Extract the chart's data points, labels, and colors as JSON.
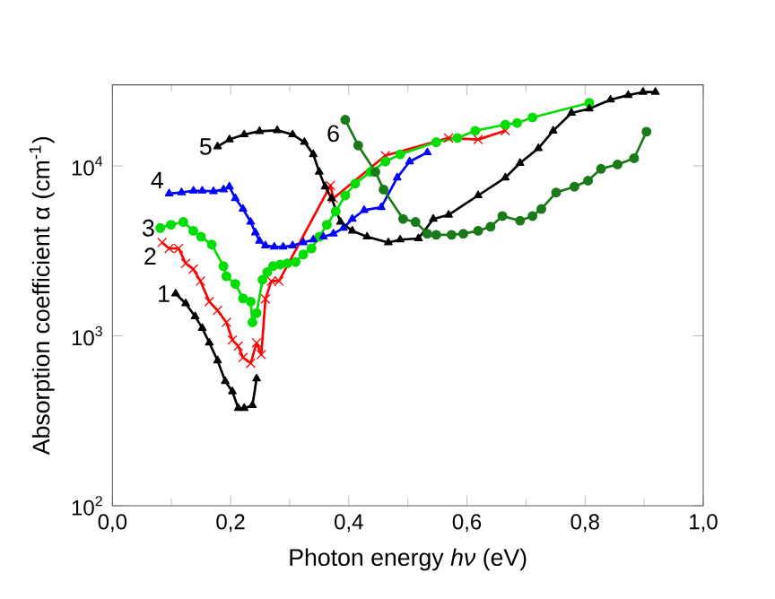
{
  "chart_data": {
    "type": "line",
    "xlabel": "Photon energy *hν* (eV)",
    "ylabel": "Absorption coefficient α (cm$^{-1}$)",
    "log": "y",
    "grid": false,
    "line_style": "solid",
    "xlim": [
      0,
      1.0
    ],
    "xticks": [
      {
        "value": 0,
        "label": "0,0"
      },
      {
        "value": 0.2,
        "label": "0,2"
      },
      {
        "value": 0.4,
        "label": "0,4"
      },
      {
        "value": 0.6,
        "label": "0,6"
      },
      {
        "value": 0.8,
        "label": "0,8"
      },
      {
        "value": 1.0,
        "label": "1,0"
      }
    ],
    "ylim": [
      100,
      30000
    ],
    "yticks": [
      {
        "value": 100,
        "label": "10$^{2}$"
      },
      {
        "value": 1000,
        "label": "10$^{3}$"
      },
      {
        "value": 10000,
        "label": "10$^{4}$"
      }
    ],
    "series": [
      {
        "name": "1",
        "color": "#000000",
        "marker": "triangle",
        "x": [
          0.107,
          0.124,
          0.14,
          0.152,
          0.164,
          0.178,
          0.191,
          0.203,
          0.213,
          0.223,
          0.237,
          0.244
        ],
        "values": [
          1770,
          1550,
          1300,
          1110,
          910,
          715,
          540,
          470,
          375,
          375,
          390,
          560
        ]
      },
      {
        "name": "2",
        "color": "#ff0000",
        "marker": "cross",
        "x": [
          0.084,
          0.096,
          0.112,
          0.124,
          0.137,
          0.149,
          0.164,
          0.178,
          0.193,
          0.203,
          0.213,
          0.221,
          0.234,
          0.244,
          0.252,
          0.259,
          0.269,
          0.282,
          0.369,
          0.374,
          0.462,
          0.569,
          0.619,
          0.665
        ],
        "values": [
          3540,
          3270,
          3270,
          2670,
          2470,
          2100,
          1590,
          1410,
          1200,
          945,
          870,
          745,
          690,
          910,
          775,
          1650,
          2100,
          2100,
          7680,
          6440,
          11500,
          14600,
          14300,
          16100
        ]
      },
      {
        "name": "3",
        "color": "#00dd00",
        "marker": "circle",
        "x": [
          0.081,
          0.099,
          0.12,
          0.137,
          0.15,
          0.168,
          0.188,
          0.193,
          0.208,
          0.221,
          0.234,
          0.237,
          0.244,
          0.254,
          0.262,
          0.272,
          0.284,
          0.296,
          0.31,
          0.323,
          0.337,
          0.35,
          0.363,
          0.378,
          0.394,
          0.411,
          0.437,
          0.462,
          0.487,
          0.548,
          0.584,
          0.614,
          0.665,
          0.685,
          0.711,
          0.807
        ],
        "values": [
          4310,
          4500,
          4680,
          4150,
          3830,
          3450,
          2570,
          2240,
          2020,
          1660,
          1590,
          1200,
          1360,
          2140,
          2370,
          2570,
          2630,
          2670,
          2720,
          3010,
          3270,
          3830,
          4500,
          5400,
          6700,
          7870,
          9230,
          10600,
          11700,
          13800,
          14600,
          16100,
          17500,
          17900,
          19300,
          23500
        ]
      },
      {
        "name": "4",
        "color": "#0000ff",
        "marker": "triangle",
        "x": [
          0.096,
          0.117,
          0.137,
          0.152,
          0.171,
          0.188,
          0.198,
          0.208,
          0.221,
          0.234,
          0.242,
          0.249,
          0.259,
          0.274,
          0.289,
          0.305,
          0.323,
          0.34,
          0.357,
          0.374,
          0.391,
          0.406,
          0.426,
          0.455,
          0.482,
          0.503,
          0.533
        ],
        "values": [
          6870,
          6980,
          7140,
          7140,
          7090,
          7260,
          7550,
          6440,
          5580,
          4680,
          4050,
          3620,
          3400,
          3340,
          3340,
          3400,
          3540,
          3680,
          3830,
          3990,
          4310,
          4870,
          5490,
          5710,
          8530,
          10600,
          12000
        ]
      },
      {
        "name": "5",
        "color": "#000000",
        "marker": "triangle",
        "x": [
          0.178,
          0.198,
          0.223,
          0.249,
          0.279,
          0.305,
          0.325,
          0.34,
          0.35,
          0.36,
          0.371,
          0.386,
          0.406,
          0.431,
          0.467,
          0.487,
          0.518,
          0.543,
          0.569,
          0.619,
          0.665,
          0.69,
          0.721,
          0.746,
          0.777,
          0.807,
          0.843,
          0.873,
          0.898,
          0.919
        ],
        "values": [
          13000,
          14300,
          15300,
          16000,
          16200,
          15300,
          13800,
          11700,
          9230,
          7550,
          6440,
          4680,
          4150,
          3830,
          3540,
          3680,
          3740,
          4870,
          5150,
          6700,
          8530,
          10400,
          12700,
          16100,
          20500,
          21700,
          24500,
          26100,
          27200,
          27200
        ]
      },
      {
        "name": "6",
        "color": "#1a7a1a",
        "marker": "circle",
        "x": [
          0.394,
          0.416,
          0.445,
          0.459,
          0.492,
          0.513,
          0.533,
          0.548,
          0.574,
          0.594,
          0.619,
          0.64,
          0.66,
          0.69,
          0.711,
          0.726,
          0.751,
          0.782,
          0.805,
          0.827,
          0.855,
          0.883,
          0.904
        ],
        "values": [
          18700,
          13200,
          9230,
          7260,
          4870,
          4680,
          3990,
          3930,
          3930,
          3990,
          4150,
          4390,
          5070,
          4760,
          5070,
          5580,
          6980,
          7550,
          8190,
          9610,
          10200,
          11100,
          15900
        ]
      }
    ]
  }
}
